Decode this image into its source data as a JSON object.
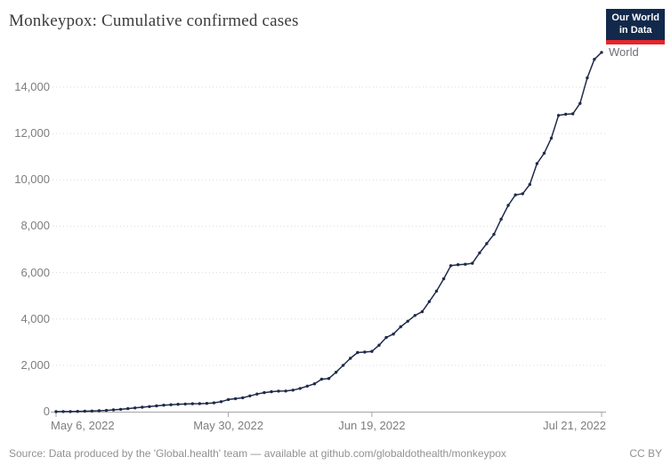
{
  "header": {
    "logo_line1": "Our World",
    "logo_line2": "in Data"
  },
  "footer": {
    "source": "Source: Data produced by the 'Global.health' team — available at github.com/globaldothealth/monkeypox",
    "license": "CC BY"
  },
  "chart_data": {
    "type": "line",
    "title": "Monkeypox: Cumulative confirmed cases",
    "entity_label": "World",
    "start_date": "May 6, 2022",
    "end_date": "Jul 21, 2022",
    "x_ticks": [
      {
        "label": "May 6, 2022",
        "day": 0
      },
      {
        "label": "May 30, 2022",
        "day": 24
      },
      {
        "label": "Jun 19, 2022",
        "day": 44
      },
      {
        "label": "Jul 21, 2022",
        "day": 76
      }
    ],
    "y_ticks": [
      {
        "label": "0",
        "value": 0
      },
      {
        "label": "2,000",
        "value": 2000
      },
      {
        "label": "4,000",
        "value": 4000
      },
      {
        "label": "6,000",
        "value": 6000
      },
      {
        "label": "8,000",
        "value": 8000
      },
      {
        "label": "10,000",
        "value": 10000
      },
      {
        "label": "12,000",
        "value": 12000
      },
      {
        "label": "14,000",
        "value": 14000
      }
    ],
    "ylim": [
      0,
      15600
    ],
    "grid": true,
    "legend_position": "end-of-line",
    "series": [
      {
        "name": "World",
        "daily_cumulative_values": [
          1,
          2,
          5,
          10,
          18,
          28,
          40,
          55,
          75,
          100,
          130,
          160,
          190,
          220,
          250,
          280,
          300,
          320,
          330,
          340,
          345,
          355,
          380,
          430,
          520,
          560,
          600,
          680,
          760,
          820,
          860,
          885,
          890,
          930,
          1000,
          1100,
          1200,
          1400,
          1430,
          1700,
          2000,
          2300,
          2550,
          2570,
          2600,
          2870,
          3200,
          3350,
          3660,
          3900,
          4150,
          4310,
          4750,
          5200,
          5730,
          6300,
          6340,
          6360,
          6400,
          6850,
          7250,
          7650,
          8300,
          8900,
          9350,
          9400,
          9800,
          10700,
          11150,
          11800,
          12780,
          12830,
          12850,
          13300,
          14400,
          15200,
          15500
        ]
      }
    ],
    "colors": {
      "line": "#1f2b4a",
      "grid": "#d9d9d9",
      "axis": "#a5a5a5",
      "tick_label": "#7d7d7d",
      "entity_label": "#6e7079",
      "logo_bg": "#12294b",
      "logo_stripe": "#e3262c"
    }
  }
}
